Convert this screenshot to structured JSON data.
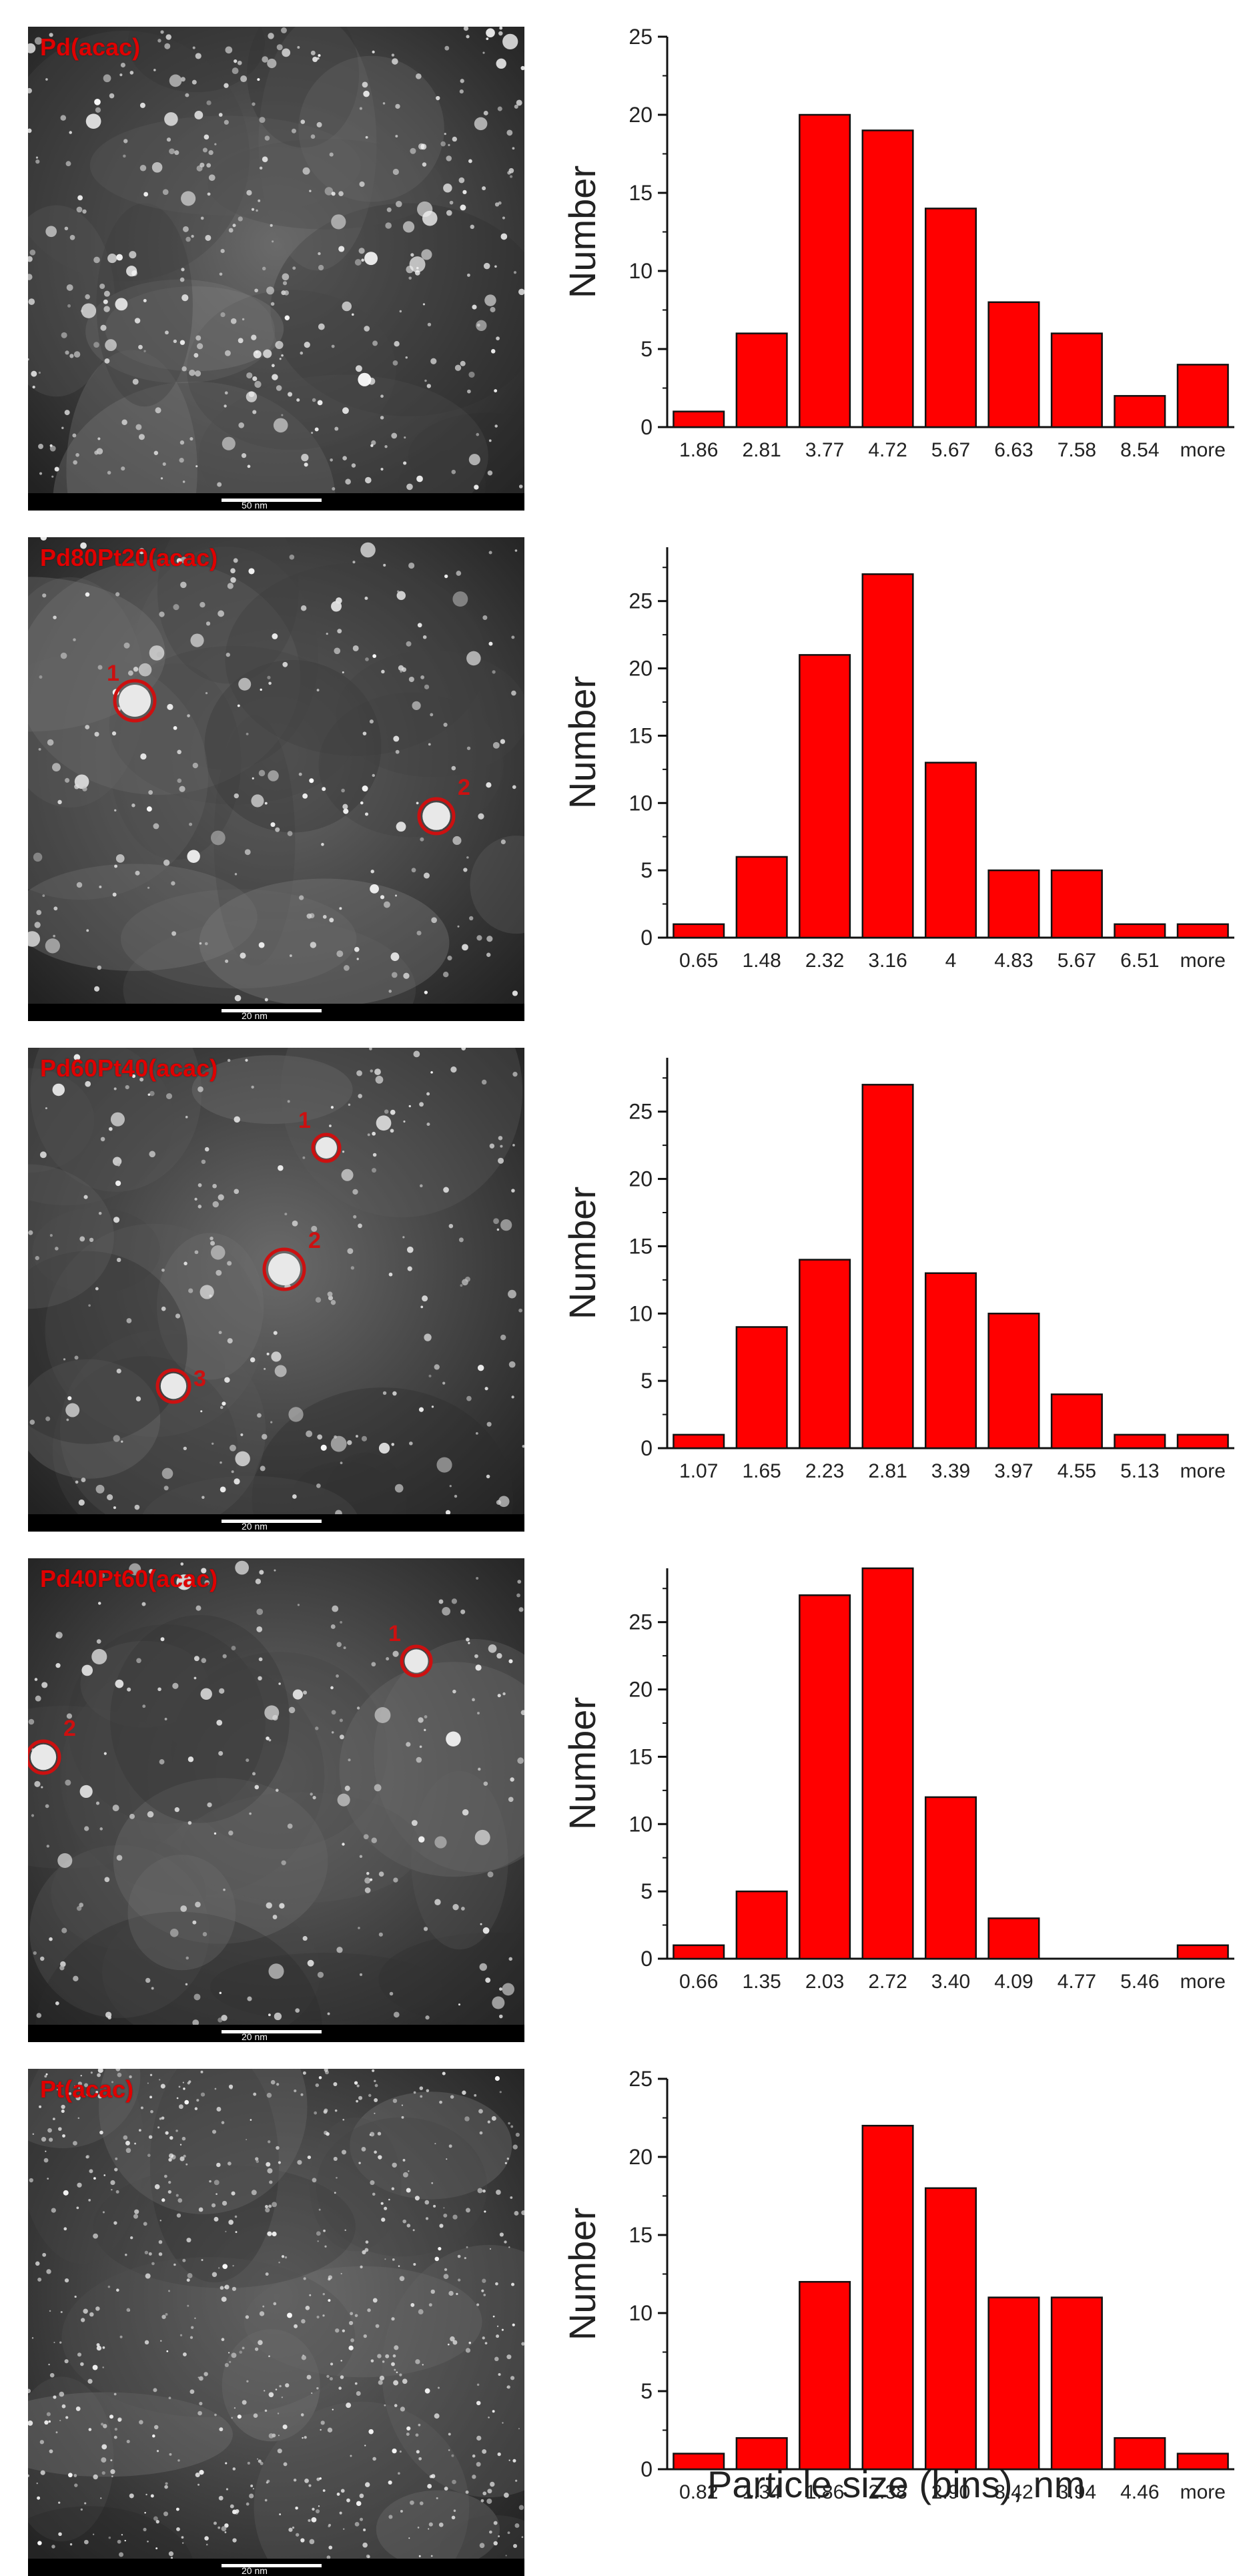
{
  "x_axis_title": "Particle size (bins), nm",
  "chart_data": [
    {
      "type": "bar",
      "panel_label": "Pd(acac)",
      "scale_bar": "50 nm",
      "ylabel": "Number",
      "ylim": [
        0,
        25
      ],
      "yticks": [
        0,
        5,
        10,
        15,
        20,
        25
      ],
      "categories": [
        "1.86",
        "2.81",
        "3.77",
        "4.72",
        "5.67",
        "6.63",
        "7.58",
        "8.54",
        "more"
      ],
      "values": [
        1,
        6,
        20,
        19,
        14,
        8,
        6,
        2,
        4
      ],
      "markers": []
    },
    {
      "type": "bar",
      "panel_label": "Pd80Pt20(acac)",
      "scale_bar": "20 nm",
      "ylabel": "Number",
      "ylim": [
        0,
        29
      ],
      "yticks": [
        0,
        5,
        10,
        15,
        20,
        25
      ],
      "categories": [
        "0.65",
        "1.48",
        "2.32",
        "3.16",
        "4",
        "4.83",
        "5.67",
        "6.51",
        "more"
      ],
      "values": [
        1,
        6,
        21,
        27,
        13,
        5,
        5,
        1,
        1
      ],
      "markers": [
        "1",
        "2"
      ]
    },
    {
      "type": "bar",
      "panel_label": "Pd60Pt40(acac)",
      "scale_bar": "20 nm",
      "ylabel": "Number",
      "ylim": [
        0,
        29
      ],
      "yticks": [
        0,
        5,
        10,
        15,
        20,
        25
      ],
      "categories": [
        "1.07",
        "1.65",
        "2.23",
        "2.81",
        "3.39",
        "3.97",
        "4.55",
        "5.13",
        "more"
      ],
      "values": [
        1,
        9,
        14,
        27,
        13,
        10,
        4,
        1,
        1
      ],
      "markers": [
        "1",
        "2",
        "3"
      ]
    },
    {
      "type": "bar",
      "panel_label": "Pd40Pt60(acac)",
      "scale_bar": "20 nm",
      "ylabel": "Number",
      "ylim": [
        0,
        29
      ],
      "yticks": [
        0,
        5,
        10,
        15,
        20,
        25
      ],
      "categories": [
        "0.66",
        "1.35",
        "2.03",
        "2.72",
        "3.40",
        "4.09",
        "4.77",
        "5.46",
        "more"
      ],
      "values": [
        1,
        5,
        27,
        29,
        12,
        3,
        0,
        0,
        1
      ],
      "markers": [
        "1",
        "2"
      ]
    },
    {
      "type": "bar",
      "panel_label": "Pt(acac)",
      "scale_bar": "20 nm",
      "ylabel": "Number",
      "ylim": [
        0,
        25
      ],
      "yticks": [
        0,
        5,
        10,
        15,
        20,
        25
      ],
      "categories": [
        "0.82",
        "1.34",
        "1.86",
        "2.38",
        "2.90",
        "3.42",
        "3.94",
        "4.46",
        "more"
      ],
      "values": [
        1,
        2,
        12,
        22,
        18,
        11,
        11,
        2,
        1
      ],
      "markers": []
    }
  ],
  "colors": {
    "bar": "#ff0000",
    "bar_edge": "#111111",
    "label": "#e00000",
    "marker": "#cc1010"
  }
}
